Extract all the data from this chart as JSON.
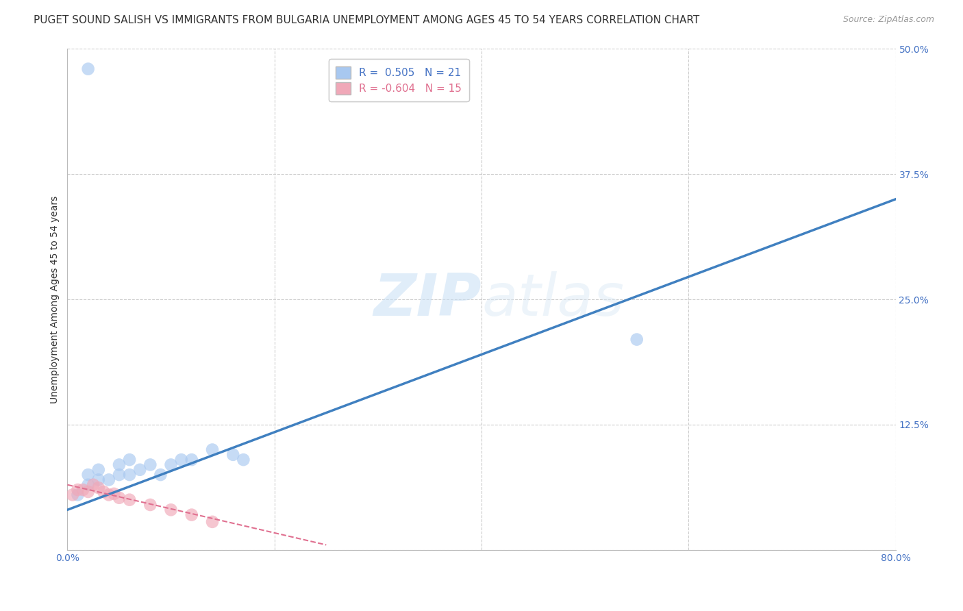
{
  "title": "PUGET SOUND SALISH VS IMMIGRANTS FROM BULGARIA UNEMPLOYMENT AMONG AGES 45 TO 54 YEARS CORRELATION CHART",
  "source": "Source: ZipAtlas.com",
  "ylabel": "Unemployment Among Ages 45 to 54 years",
  "xlim": [
    0.0,
    0.8
  ],
  "ylim": [
    0.0,
    0.5
  ],
  "xticks": [
    0.0,
    0.2,
    0.4,
    0.6,
    0.8
  ],
  "xticklabels": [
    "0.0%",
    "",
    "",
    "",
    "80.0%"
  ],
  "yticks": [
    0.0,
    0.125,
    0.25,
    0.375,
    0.5
  ],
  "yticklabels": [
    "",
    "12.5%",
    "25.0%",
    "37.5%",
    "50.0%"
  ],
  "blue_R": 0.505,
  "blue_N": 21,
  "pink_R": -0.604,
  "pink_N": 15,
  "blue_color": "#a8c8f0",
  "pink_color": "#f0a8b8",
  "blue_line_color": "#4080c0",
  "pink_line_color": "#e07090",
  "watermark_part1": "ZIP",
  "watermark_part2": "atlas",
  "blue_scatter_x": [
    0.01,
    0.02,
    0.02,
    0.03,
    0.03,
    0.04,
    0.05,
    0.05,
    0.06,
    0.06,
    0.07,
    0.08,
    0.09,
    0.1,
    0.11,
    0.12,
    0.14,
    0.16,
    0.17,
    0.55,
    0.02
  ],
  "blue_scatter_y": [
    0.055,
    0.065,
    0.075,
    0.07,
    0.08,
    0.07,
    0.075,
    0.085,
    0.075,
    0.09,
    0.08,
    0.085,
    0.075,
    0.085,
    0.09,
    0.09,
    0.1,
    0.095,
    0.09,
    0.21,
    0.48
  ],
  "pink_scatter_x": [
    0.005,
    0.01,
    0.015,
    0.02,
    0.025,
    0.03,
    0.035,
    0.04,
    0.045,
    0.05,
    0.06,
    0.08,
    0.1,
    0.12,
    0.14
  ],
  "pink_scatter_y": [
    0.055,
    0.06,
    0.06,
    0.058,
    0.065,
    0.062,
    0.058,
    0.055,
    0.056,
    0.052,
    0.05,
    0.045,
    0.04,
    0.035,
    0.028
  ],
  "blue_trendline_x": [
    0.0,
    0.8
  ],
  "blue_trendline_y": [
    0.04,
    0.35
  ],
  "pink_trendline_x": [
    0.0,
    0.25
  ],
  "pink_trendline_y": [
    0.065,
    0.005
  ],
  "grid_color": "#cccccc",
  "background_color": "#ffffff",
  "title_fontsize": 11,
  "axis_label_fontsize": 10,
  "tick_fontsize": 10,
  "scatter_size": 180
}
